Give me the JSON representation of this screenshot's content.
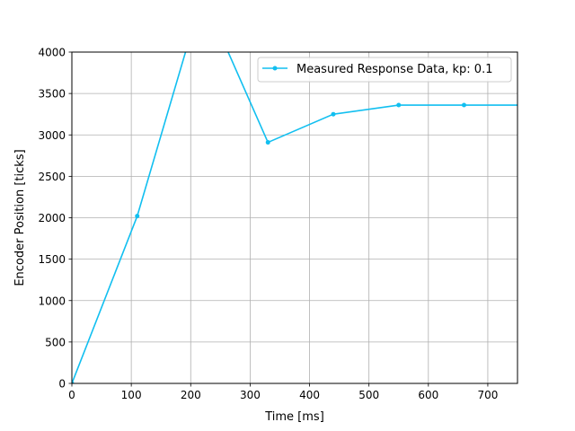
{
  "chart_data": {
    "type": "line",
    "title": "",
    "xlabel": "Time [ms]",
    "ylabel": "Encoder Position [ticks]",
    "xlim": [
      0,
      750
    ],
    "ylim": [
      0,
      4000
    ],
    "xticks": [
      0,
      100,
      200,
      300,
      400,
      500,
      600,
      700
    ],
    "yticks": [
      0,
      500,
      1000,
      1500,
      2000,
      2500,
      3000,
      3500,
      4000
    ],
    "grid": true,
    "legend_position": "top-right",
    "series": [
      {
        "name": "Measured Response Data, kp: 0.1",
        "color": "#11bff0",
        "x": [
          0,
          110,
          220,
          330,
          440,
          550,
          660,
          770
        ],
        "y": [
          0,
          2020,
          4700,
          2910,
          3250,
          3360,
          3360,
          3360
        ]
      }
    ]
  }
}
